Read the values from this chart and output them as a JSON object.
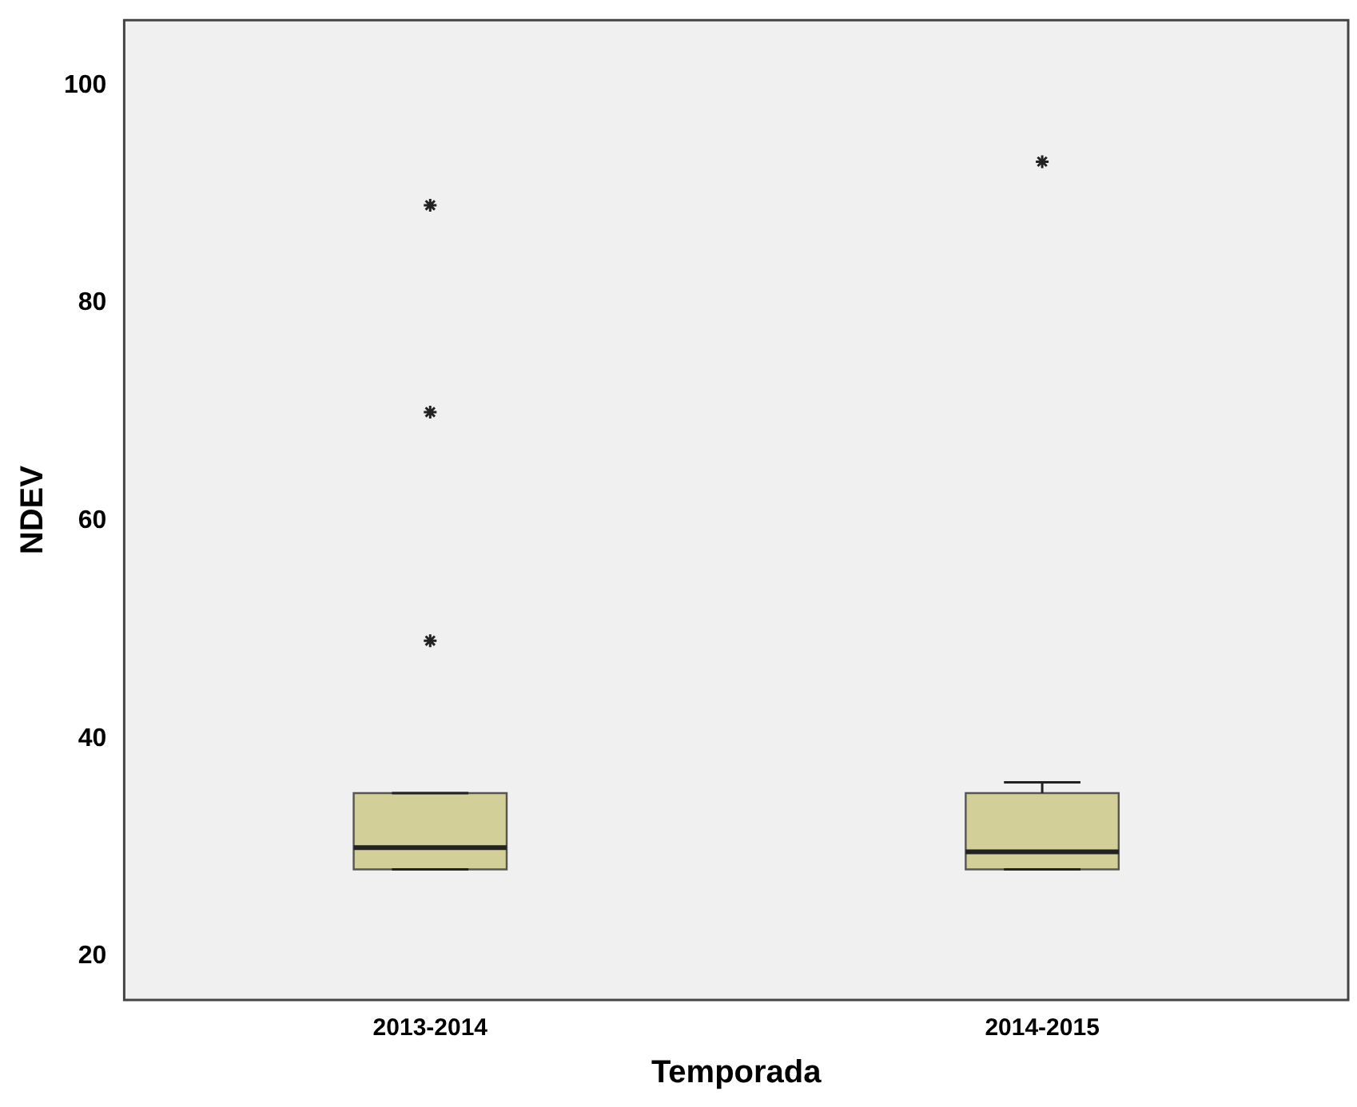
{
  "chart_data": {
    "type": "box",
    "xlabel": "Temporada",
    "ylabel": "NDEV",
    "categories": [
      "2013-2014",
      "2014-2015"
    ],
    "color": "#d3cf98",
    "marker": "star",
    "grid": false,
    "legend": false,
    "boxes": [
      {
        "low": 28,
        "q1": 28,
        "median": 30,
        "q3": 35,
        "high": 35,
        "outliers": [
          49,
          70,
          89
        ]
      },
      {
        "low": 28,
        "q1": 28,
        "median": 29.6,
        "q3": 35,
        "high": 36,
        "outliers": [
          93
        ]
      }
    ],
    "ylim": [
      16,
      106
    ],
    "yticks": [
      20,
      40,
      60,
      80,
      100
    ]
  }
}
